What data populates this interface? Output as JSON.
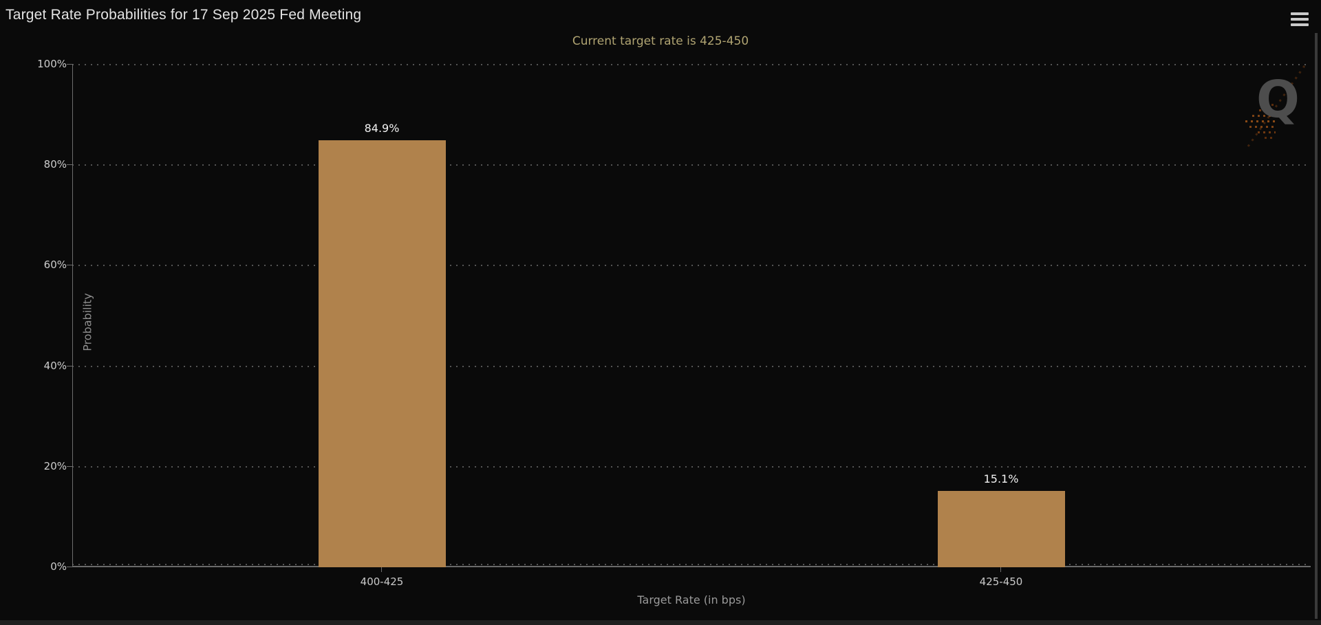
{
  "header": {
    "title": "Target Rate Probabilities for 17 Sep 2025 Fed Meeting",
    "subtitle": "Current target rate is 425-450",
    "menu_icon": "hamburger-icon",
    "watermark_letter": "Q"
  },
  "chart_data": {
    "type": "bar",
    "title": "Target Rate Probabilities for 17 Sep 2025 Fed Meeting",
    "subtitle": "Current target rate is 425-450",
    "categories": [
      "400-425",
      "425-450"
    ],
    "values": [
      84.9,
      15.1
    ],
    "value_labels": [
      "84.9%",
      "15.1%"
    ],
    "xlabel": "Target Rate (in bps)",
    "ylabel": "Probability",
    "ylim": [
      0,
      100
    ],
    "ytick_labels": [
      "100%",
      "80%",
      "60%",
      "40%",
      "20%",
      "0%"
    ],
    "grid": "horizontal dotted",
    "legend": "none",
    "bar_color": "#b0824c",
    "background_color": "#0a0a0a",
    "subtitle_color": "#b0a472",
    "label_color": "#cccccc"
  }
}
